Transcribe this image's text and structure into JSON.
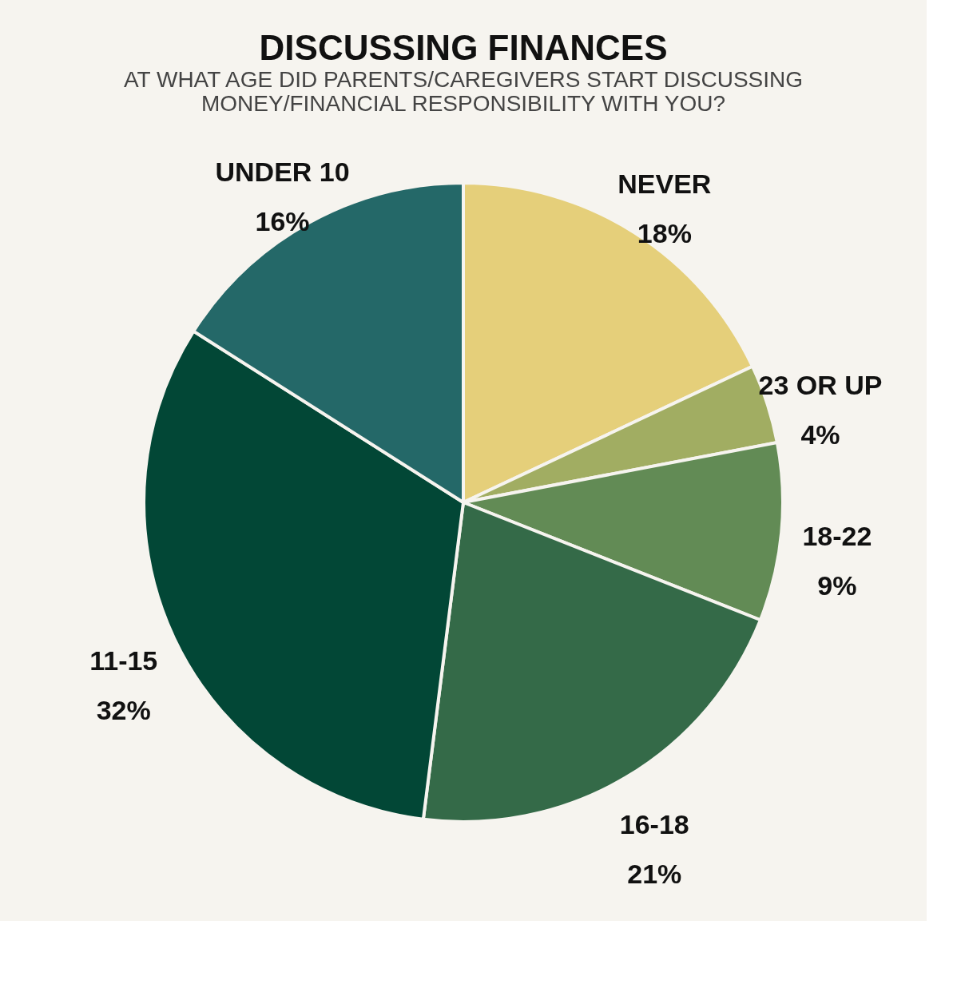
{
  "chart_data": {
    "type": "pie",
    "title": "DISCUSSING FINANCES",
    "subtitle": [
      "AT WHAT AGE DID PARENTS/CAREGIVERS START DISCUSSING",
      "MONEY/FINANCIAL RESPONSIBILITY WITH YOU?"
    ],
    "categories": [
      "NEVER",
      "23 OR UP",
      "18-22",
      "16-18",
      "11-15",
      "UNDER 10"
    ],
    "values": [
      18,
      4,
      9,
      21,
      32,
      16
    ],
    "value_labels": [
      "18%",
      "4%",
      "9%",
      "21%",
      "32%",
      "16%"
    ],
    "colors": [
      "#e5cf7a",
      "#a1ad62",
      "#628b55",
      "#346a48",
      "#024736",
      "#246868"
    ],
    "legend": false
  }
}
